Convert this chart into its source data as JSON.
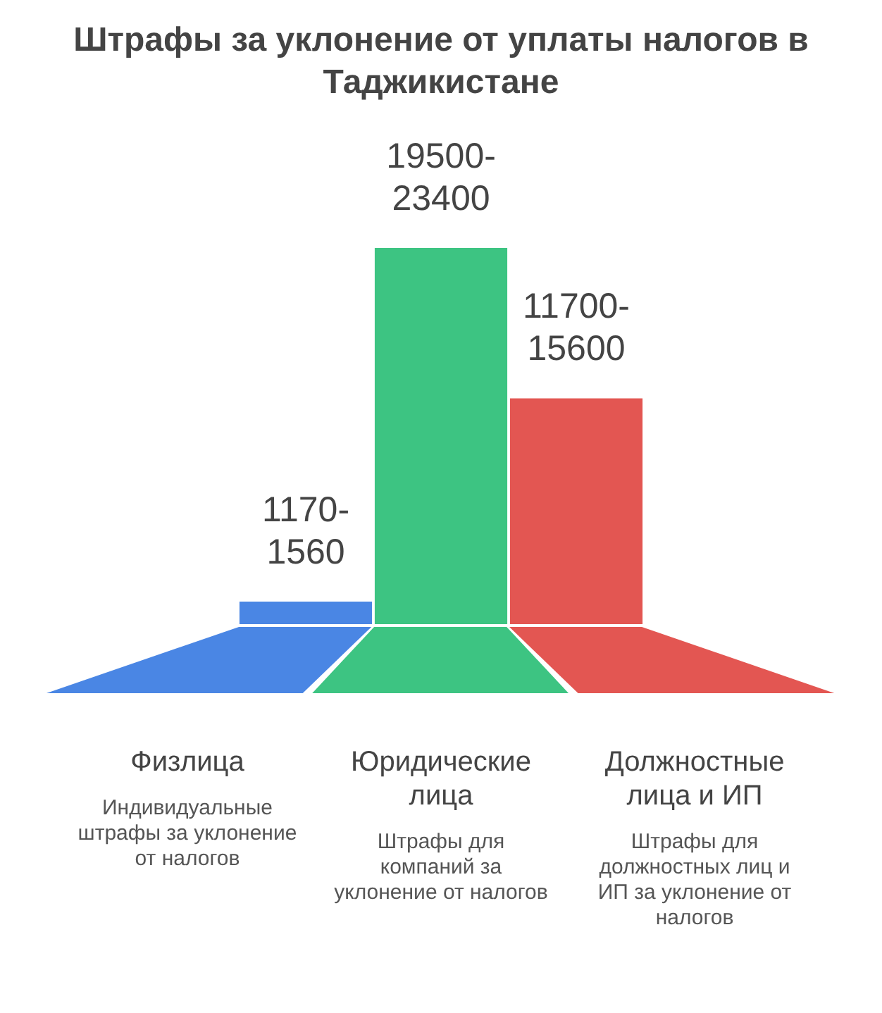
{
  "chart_data": {
    "type": "bar",
    "title": "Штрафы за уклонение от уплаты налогов в Таджикистане",
    "categories": [
      "Физлица",
      "Юридические лица",
      "Должностные лица и ИП"
    ],
    "values": [
      1170,
      19500,
      11700
    ],
    "colors": [
      "#4a86e4",
      "#3dc482",
      "#e35652"
    ],
    "tick_labels": "x",
    "value_labels": [
      "1170-1560",
      "19500-23400",
      "11700-15600"
    ],
    "annotations": [
      "Индивидуальные штрафы за уклонение от налогов",
      "Штрафы для компаний за уклонение от налогов",
      "Штрафы для должностных лиц и ИП за уклонение от налогов"
    ]
  }
}
